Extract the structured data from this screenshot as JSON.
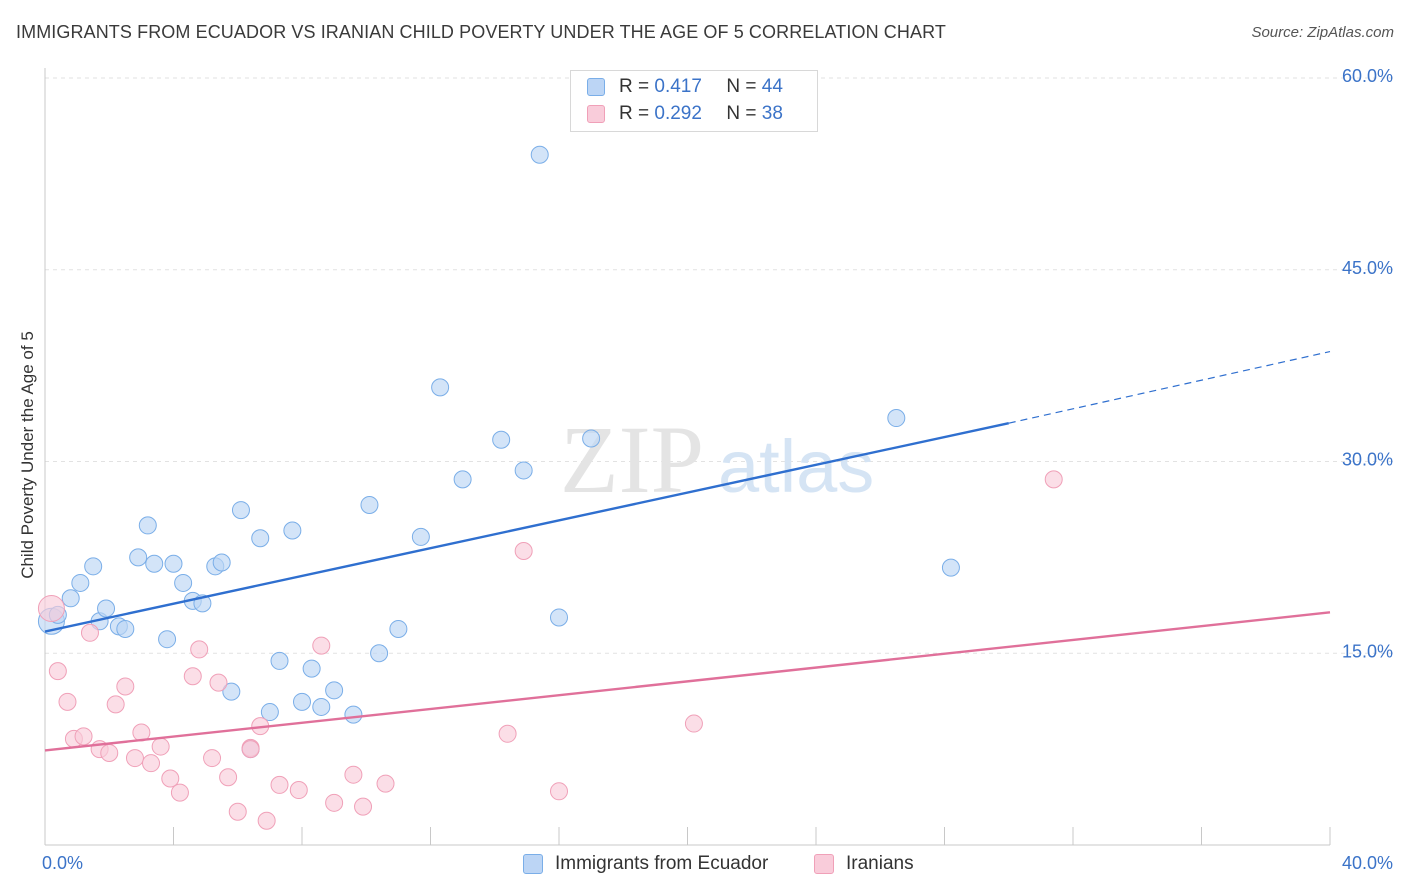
{
  "chart_data": {
    "type": "scatter",
    "title": "IMMIGRANTS FROM ECUADOR VS IRANIAN CHILD POVERTY UNDER THE AGE OF 5 CORRELATION CHART",
    "source": "Source: ZipAtlas.com",
    "watermark": {
      "zip": "ZIP",
      "atlas": "atlas"
    },
    "ylabel": "Child Poverty Under the Age of 5",
    "xlim": [
      0,
      40
    ],
    "ylim": [
      0,
      60
    ],
    "x_tick_labels": [
      {
        "value": 0,
        "label": "0.0%"
      },
      {
        "value": 40,
        "label": "40.0%"
      }
    ],
    "y_tick_labels": [
      {
        "value": 15,
        "label": "15.0%"
      },
      {
        "value": 30,
        "label": "30.0%"
      },
      {
        "value": 45,
        "label": "45.0%"
      },
      {
        "value": 60,
        "label": "60.0%"
      }
    ],
    "legend": {
      "rows": [
        {
          "r_label": "R =",
          "r_value": "0.417",
          "n_label": "N =",
          "n_value": "44"
        },
        {
          "r_label": "R =",
          "r_value": "0.292",
          "n_label": "N =",
          "n_value": "38"
        }
      ]
    },
    "series": [
      {
        "name": "Immigrants from Ecuador",
        "color": "#7aaee8",
        "fill": "#bcd5f5",
        "line_color": "#2f6fcf",
        "trend": {
          "x0": 0,
          "y0": 16.7,
          "x1": 30,
          "y1": 33.0,
          "dash_to_x": 40,
          "dash_to_y": 38.6
        },
        "points": [
          [
            0.2,
            17.5
          ],
          [
            0.4,
            18.0
          ],
          [
            0.8,
            19.3
          ],
          [
            1.1,
            20.5
          ],
          [
            1.5,
            21.8
          ],
          [
            1.7,
            17.5
          ],
          [
            1.9,
            18.5
          ],
          [
            2.3,
            17.1
          ],
          [
            2.5,
            16.9
          ],
          [
            2.9,
            22.5
          ],
          [
            3.2,
            25.0
          ],
          [
            3.4,
            22.0
          ],
          [
            3.8,
            16.1
          ],
          [
            4.0,
            22.0
          ],
          [
            4.3,
            20.5
          ],
          [
            4.6,
            19.1
          ],
          [
            4.9,
            18.9
          ],
          [
            5.3,
            21.8
          ],
          [
            5.5,
            22.1
          ],
          [
            5.8,
            12.0
          ],
          [
            6.1,
            26.2
          ],
          [
            6.4,
            7.5
          ],
          [
            6.7,
            24.0
          ],
          [
            7.0,
            10.4
          ],
          [
            7.3,
            14.4
          ],
          [
            7.7,
            24.6
          ],
          [
            8.0,
            11.2
          ],
          [
            8.3,
            13.8
          ],
          [
            8.6,
            10.8
          ],
          [
            9.0,
            12.1
          ],
          [
            9.6,
            10.2
          ],
          [
            10.1,
            26.6
          ],
          [
            10.4,
            15.0
          ],
          [
            11.0,
            16.9
          ],
          [
            11.7,
            24.1
          ],
          [
            12.3,
            35.8
          ],
          [
            13.0,
            28.6
          ],
          [
            14.2,
            31.7
          ],
          [
            14.9,
            29.3
          ],
          [
            15.4,
            54.0
          ],
          [
            16.0,
            17.8
          ],
          [
            17.0,
            31.8
          ],
          [
            26.5,
            33.4
          ],
          [
            28.2,
            21.7
          ]
        ]
      },
      {
        "name": "Iranians",
        "color": "#f0a0b8",
        "fill": "#f9ccda",
        "line_color": "#e0709a",
        "trend": {
          "x0": 0,
          "y0": 7.4,
          "x1": 40,
          "y1": 18.2
        },
        "points": [
          [
            0.2,
            18.5
          ],
          [
            0.4,
            13.6
          ],
          [
            0.7,
            11.2
          ],
          [
            0.9,
            8.3
          ],
          [
            1.2,
            8.5
          ],
          [
            1.4,
            16.6
          ],
          [
            1.7,
            7.5
          ],
          [
            2.0,
            7.2
          ],
          [
            2.2,
            11.0
          ],
          [
            2.5,
            12.4
          ],
          [
            2.8,
            6.8
          ],
          [
            3.0,
            8.8
          ],
          [
            3.3,
            6.4
          ],
          [
            3.6,
            7.7
          ],
          [
            3.9,
            5.2
          ],
          [
            4.2,
            4.1
          ],
          [
            4.6,
            13.2
          ],
          [
            4.8,
            15.3
          ],
          [
            5.2,
            6.8
          ],
          [
            5.4,
            12.7
          ],
          [
            5.7,
            5.3
          ],
          [
            6.0,
            2.6
          ],
          [
            6.4,
            7.6
          ],
          [
            6.7,
            9.3
          ],
          [
            6.9,
            1.9
          ],
          [
            7.3,
            4.7
          ],
          [
            7.9,
            4.3
          ],
          [
            8.6,
            15.6
          ],
          [
            9.0,
            3.3
          ],
          [
            9.6,
            5.5
          ],
          [
            9.9,
            3.0
          ],
          [
            10.6,
            4.8
          ],
          [
            14.4,
            8.7
          ],
          [
            14.9,
            23.0
          ],
          [
            16.0,
            4.2
          ],
          [
            20.2,
            9.5
          ],
          [
            31.4,
            28.6
          ],
          [
            6.4,
            7.5
          ]
        ]
      }
    ]
  }
}
